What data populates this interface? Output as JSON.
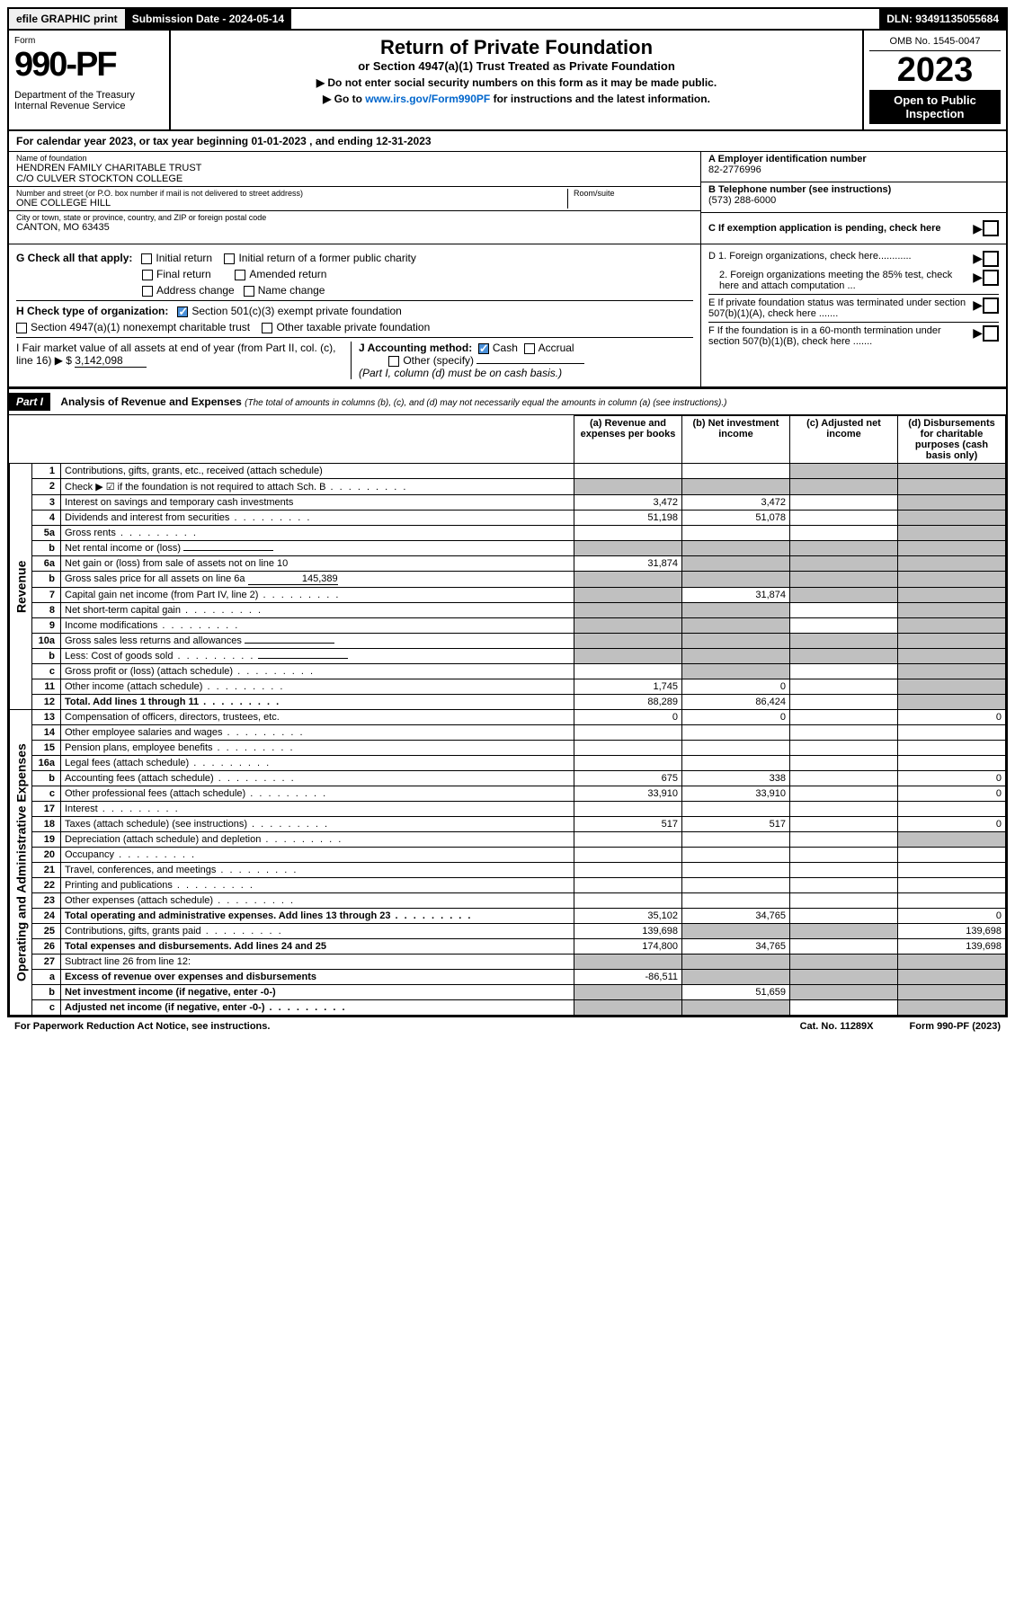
{
  "topbar": {
    "efile": "efile GRAPHIC print",
    "submission": "Submission Date - 2024-05-14",
    "dln": "DLN: 93491135055684"
  },
  "header": {
    "form_label": "Form",
    "form_number": "990-PF",
    "dept": "Department of the Treasury\nInternal Revenue Service",
    "title": "Return of Private Foundation",
    "subtitle": "or Section 4947(a)(1) Trust Treated as Private Foundation",
    "note1": "▶ Do not enter social security numbers on this form as it may be made public.",
    "note2": "▶ Go to www.irs.gov/Form990PF for instructions and the latest information.",
    "omb": "OMB No. 1545-0047",
    "year": "2023",
    "open": "Open to Public Inspection"
  },
  "calyear": "For calendar year 2023, or tax year beginning 01-01-2023                          , and ending 12-31-2023",
  "entity": {
    "name_lbl": "Name of foundation",
    "name": "HENDREN FAMILY CHARITABLE TRUST\nC/O CULVER STOCKTON COLLEGE",
    "street_lbl": "Number and street (or P.O. box number if mail is not delivered to street address)",
    "street": "ONE COLLEGE HILL",
    "room_lbl": "Room/suite",
    "city_lbl": "City or town, state or province, country, and ZIP or foreign postal code",
    "city": "CANTON, MO  63435",
    "a_lbl": "A Employer identification number",
    "a_val": "82-2776996",
    "b_lbl": "B Telephone number (see instructions)",
    "b_val": "(573) 288-6000",
    "c_lbl": "C If exemption application is pending, check here"
  },
  "checks": {
    "g_lbl": "G Check all that apply:",
    "g_initial": "Initial return",
    "g_initial_former": "Initial return of a former public charity",
    "g_final": "Final return",
    "g_amended": "Amended return",
    "g_address": "Address change",
    "g_name": "Name change",
    "h_lbl": "H Check type of organization:",
    "h_501c3": "Section 501(c)(3) exempt private foundation",
    "h_4947": "Section 4947(a)(1) nonexempt charitable trust",
    "h_other": "Other taxable private foundation",
    "i_lbl": "I Fair market value of all assets at end of year (from Part II, col. (c), line 16) ▶ $",
    "i_val": "3,142,098",
    "j_lbl": "J Accounting method:",
    "j_cash": "Cash",
    "j_accrual": "Accrual",
    "j_other": "Other (specify)",
    "j_note": "(Part I, column (d) must be on cash basis.)",
    "d1": "D 1. Foreign organizations, check here............",
    "d2": "2. Foreign organizations meeting the 85% test, check here and attach computation ...",
    "e": "E  If private foundation status was terminated under section 507(b)(1)(A), check here .......",
    "f": "F  If the foundation is in a 60-month termination under section 507(b)(1)(B), check here .......",
    "arrow": "▶"
  },
  "part1": {
    "label": "Part I",
    "title": "Analysis of Revenue and Expenses",
    "desc": "(The total of amounts in columns (b), (c), and (d) may not necessarily equal the amounts in column (a) (see instructions).)",
    "col_a": "(a)  Revenue and expenses per books",
    "col_b": "(b)  Net investment income",
    "col_c": "(c)  Adjusted net income",
    "col_d": "(d)  Disbursements for charitable purposes (cash basis only)",
    "vlabel_rev": "Revenue",
    "vlabel_exp": "Operating and Administrative Expenses"
  },
  "rows": [
    {
      "n": "1",
      "d": "Contributions, gifts, grants, etc., received (attach schedule)",
      "a": "",
      "b": "",
      "c": "shade",
      "dv": "shade"
    },
    {
      "n": "2",
      "d": "Check ▶ ☑ if the foundation is not required to attach Sch. B",
      "dots": true,
      "a": "shade",
      "b": "shade",
      "c": "shade",
      "dv": "shade",
      "bold_not": true
    },
    {
      "n": "3",
      "d": "Interest on savings and temporary cash investments",
      "a": "3,472",
      "b": "3,472",
      "c": "",
      "dv": "shade"
    },
    {
      "n": "4",
      "d": "Dividends and interest from securities",
      "dots": true,
      "a": "51,198",
      "b": "51,078",
      "c": "",
      "dv": "shade"
    },
    {
      "n": "5a",
      "d": "Gross rents",
      "dots": true,
      "a": "",
      "b": "",
      "c": "",
      "dv": "shade"
    },
    {
      "n": "b",
      "d": "Net rental income or (loss)",
      "inline_blank": true,
      "a": "shade",
      "b": "shade",
      "c": "shade",
      "dv": "shade"
    },
    {
      "n": "6a",
      "d": "Net gain or (loss) from sale of assets not on line 10",
      "a": "31,874",
      "b": "shade",
      "c": "shade",
      "dv": "shade"
    },
    {
      "n": "b",
      "d": "Gross sales price for all assets on line 6a",
      "inline_val": "145,389",
      "a": "shade",
      "b": "shade",
      "c": "shade",
      "dv": "shade"
    },
    {
      "n": "7",
      "d": "Capital gain net income (from Part IV, line 2)",
      "dots": true,
      "a": "shade",
      "b": "31,874",
      "c": "shade",
      "dv": "shade"
    },
    {
      "n": "8",
      "d": "Net short-term capital gain",
      "dots": true,
      "a": "shade",
      "b": "shade",
      "c": "",
      "dv": "shade"
    },
    {
      "n": "9",
      "d": "Income modifications",
      "dots": true,
      "a": "shade",
      "b": "shade",
      "c": "",
      "dv": "shade"
    },
    {
      "n": "10a",
      "d": "Gross sales less returns and allowances",
      "inline_blank": true,
      "a": "shade",
      "b": "shade",
      "c": "shade",
      "dv": "shade"
    },
    {
      "n": "b",
      "d": "Less: Cost of goods sold",
      "dots": true,
      "inline_blank": true,
      "a": "shade",
      "b": "shade",
      "c": "shade",
      "dv": "shade"
    },
    {
      "n": "c",
      "d": "Gross profit or (loss) (attach schedule)",
      "dots": true,
      "a": "",
      "b": "shade",
      "c": "",
      "dv": "shade"
    },
    {
      "n": "11",
      "d": "Other income (attach schedule)",
      "dots": true,
      "a": "1,745",
      "b": "0",
      "c": "",
      "dv": "shade"
    },
    {
      "n": "12",
      "d": "Total. Add lines 1 through 11",
      "dots": true,
      "bold": true,
      "a": "88,289",
      "b": "86,424",
      "c": "",
      "dv": "shade"
    },
    {
      "n": "13",
      "d": "Compensation of officers, directors, trustees, etc.",
      "a": "0",
      "b": "0",
      "c": "",
      "dv": "0",
      "sec": "exp"
    },
    {
      "n": "14",
      "d": "Other employee salaries and wages",
      "dots": true,
      "a": "",
      "b": "",
      "c": "",
      "dv": "",
      "sec": "exp"
    },
    {
      "n": "15",
      "d": "Pension plans, employee benefits",
      "dots": true,
      "a": "",
      "b": "",
      "c": "",
      "dv": "",
      "sec": "exp"
    },
    {
      "n": "16a",
      "d": "Legal fees (attach schedule)",
      "dots": true,
      "a": "",
      "b": "",
      "c": "",
      "dv": "",
      "sec": "exp"
    },
    {
      "n": "b",
      "d": "Accounting fees (attach schedule)",
      "dots": true,
      "a": "675",
      "b": "338",
      "c": "",
      "dv": "0",
      "sec": "exp"
    },
    {
      "n": "c",
      "d": "Other professional fees (attach schedule)",
      "dots": true,
      "a": "33,910",
      "b": "33,910",
      "c": "",
      "dv": "0",
      "sec": "exp"
    },
    {
      "n": "17",
      "d": "Interest",
      "dots": true,
      "a": "",
      "b": "",
      "c": "",
      "dv": "",
      "sec": "exp"
    },
    {
      "n": "18",
      "d": "Taxes (attach schedule) (see instructions)",
      "dots": true,
      "a": "517",
      "b": "517",
      "c": "",
      "dv": "0",
      "sec": "exp"
    },
    {
      "n": "19",
      "d": "Depreciation (attach schedule) and depletion",
      "dots": true,
      "a": "",
      "b": "",
      "c": "",
      "dv": "shade",
      "sec": "exp"
    },
    {
      "n": "20",
      "d": "Occupancy",
      "dots": true,
      "a": "",
      "b": "",
      "c": "",
      "dv": "",
      "sec": "exp"
    },
    {
      "n": "21",
      "d": "Travel, conferences, and meetings",
      "dots": true,
      "a": "",
      "b": "",
      "c": "",
      "dv": "",
      "sec": "exp"
    },
    {
      "n": "22",
      "d": "Printing and publications",
      "dots": true,
      "a": "",
      "b": "",
      "c": "",
      "dv": "",
      "sec": "exp"
    },
    {
      "n": "23",
      "d": "Other expenses (attach schedule)",
      "dots": true,
      "a": "",
      "b": "",
      "c": "",
      "dv": "",
      "sec": "exp"
    },
    {
      "n": "24",
      "d": "Total operating and administrative expenses. Add lines 13 through 23",
      "dots": true,
      "bold": true,
      "a": "35,102",
      "b": "34,765",
      "c": "",
      "dv": "0",
      "sec": "exp"
    },
    {
      "n": "25",
      "d": "Contributions, gifts, grants paid",
      "dots": true,
      "a": "139,698",
      "b": "shade",
      "c": "shade",
      "dv": "139,698",
      "sec": "exp"
    },
    {
      "n": "26",
      "d": "Total expenses and disbursements. Add lines 24 and 25",
      "bold": true,
      "a": "174,800",
      "b": "34,765",
      "c": "",
      "dv": "139,698",
      "sec": "exp"
    },
    {
      "n": "27",
      "d": "Subtract line 26 from line 12:",
      "a": "shade",
      "b": "shade",
      "c": "shade",
      "dv": "shade",
      "sec": "exp"
    },
    {
      "n": "a",
      "d": "Excess of revenue over expenses and disbursements",
      "bold": true,
      "a": "-86,511",
      "b": "shade",
      "c": "shade",
      "dv": "shade",
      "sec": "exp"
    },
    {
      "n": "b",
      "d": "Net investment income (if negative, enter -0-)",
      "bold": true,
      "a": "shade",
      "b": "51,659",
      "c": "shade",
      "dv": "shade",
      "sec": "exp"
    },
    {
      "n": "c",
      "d": "Adjusted net income (if negative, enter -0-)",
      "dots": true,
      "bold": true,
      "a": "shade",
      "b": "shade",
      "c": "",
      "dv": "shade",
      "sec": "exp"
    }
  ],
  "footer": {
    "left": "For Paperwork Reduction Act Notice, see instructions.",
    "mid": "Cat. No. 11289X",
    "right": "Form 990-PF (2023)"
  }
}
